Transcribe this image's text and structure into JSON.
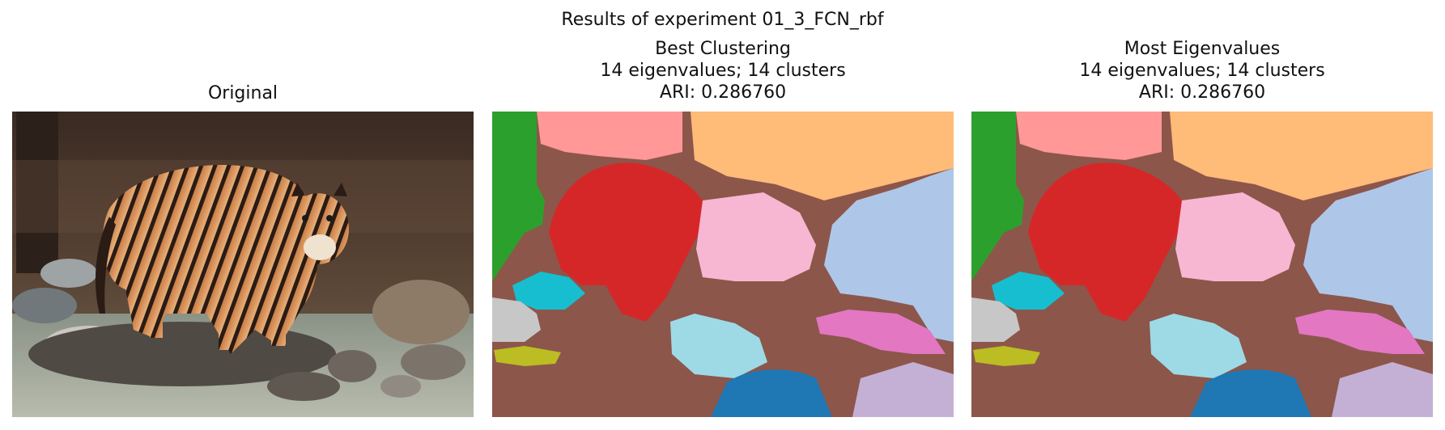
{
  "figure": {
    "suptitle": "Results of experiment 01_3_FCN_rbf"
  },
  "panels": [
    {
      "title_lines": [
        "Original"
      ]
    },
    {
      "title_lines": [
        "Best Clustering",
        "14 eigenvalues; 14 clusters",
        "ARI: 0.286760"
      ]
    },
    {
      "title_lines": [
        "Most Eigenvalues",
        "14 eigenvalues; 14 clusters",
        "ARI: 0.286760"
      ]
    }
  ],
  "palette": {
    "brown_background": "#8c564b",
    "green": "#2ca02c",
    "salmon": "#ff9896",
    "light_orange": "#ffbb78",
    "light_blue": "#aec7e8",
    "red": "#d62728",
    "pink": "#f7b6d2",
    "cyan": "#17becf",
    "light_gray": "#c7c7c7",
    "olive": "#bcbd22",
    "light_cyan": "#9edae5",
    "magenta": "#e377c2",
    "blue": "#1f77b4",
    "lavender": "#c5b0d5"
  }
}
